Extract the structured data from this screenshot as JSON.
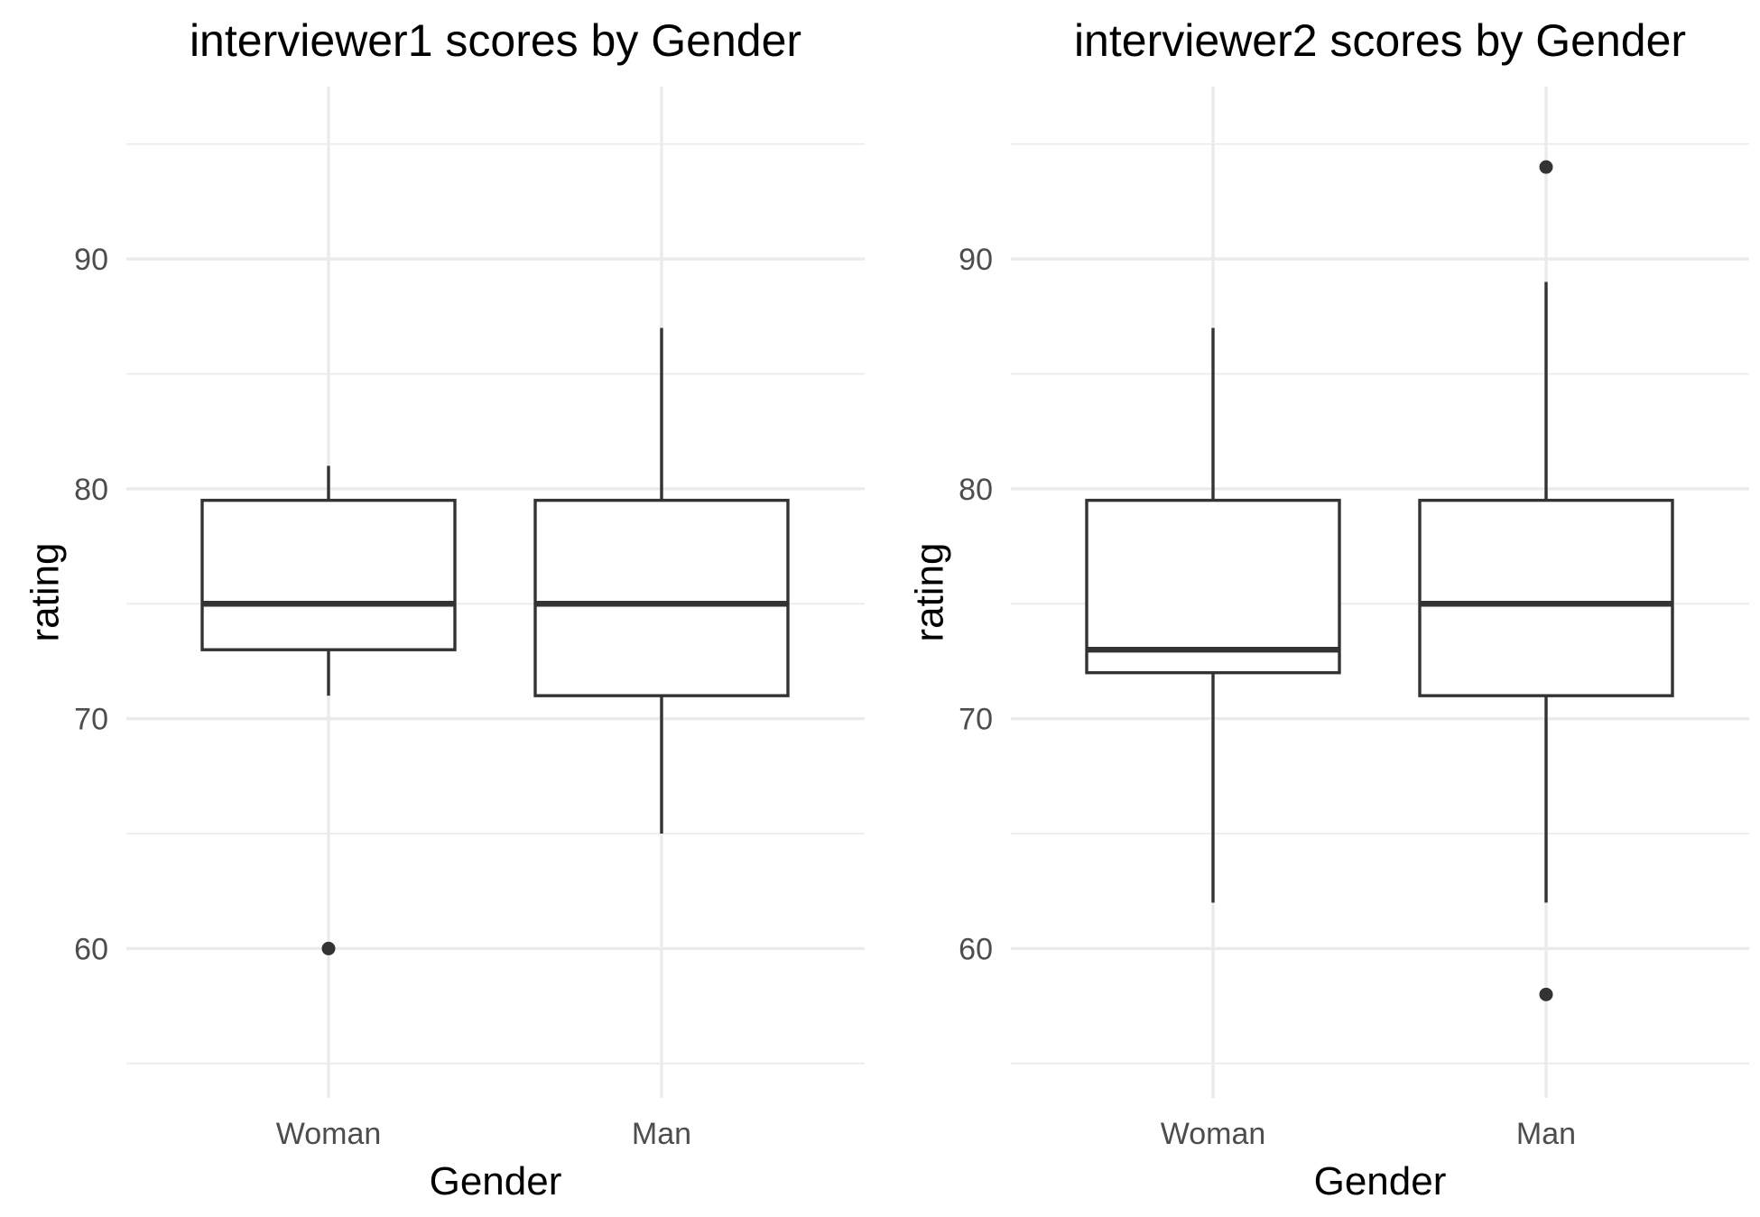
{
  "chart_data": [
    {
      "type": "boxplot",
      "title": "interviewer1 scores by Gender",
      "xlabel": "Gender",
      "ylabel": "rating",
      "categories": [
        "Woman",
        "Man"
      ],
      "ylim": [
        53.5,
        97.5
      ],
      "yticks": [
        60,
        70,
        80,
        90
      ],
      "y_minor_ticks": [
        55,
        65,
        75,
        85,
        95
      ],
      "grid": true,
      "boxes": [
        {
          "category": "Woman",
          "whisker_low": 71,
          "q1": 73,
          "median": 75,
          "q3": 79.5,
          "whisker_high": 81,
          "outliers": [
            60
          ]
        },
        {
          "category": "Man",
          "whisker_low": 65,
          "q1": 71,
          "median": 75,
          "q3": 79.5,
          "whisker_high": 87,
          "outliers": []
        }
      ]
    },
    {
      "type": "boxplot",
      "title": "interviewer2 scores by Gender",
      "xlabel": "Gender",
      "ylabel": "rating",
      "categories": [
        "Woman",
        "Man"
      ],
      "ylim": [
        53.5,
        97.5
      ],
      "yticks": [
        60,
        70,
        80,
        90
      ],
      "y_minor_ticks": [
        55,
        65,
        75,
        85,
        95
      ],
      "grid": true,
      "boxes": [
        {
          "category": "Woman",
          "whisker_low": 62,
          "q1": 72,
          "median": 73,
          "q3": 79.5,
          "whisker_high": 87,
          "outliers": []
        },
        {
          "category": "Man",
          "whisker_low": 62,
          "q1": 71,
          "median": 75,
          "q3": 79.5,
          "whisker_high": 89,
          "outliers": [
            94,
            58
          ]
        }
      ]
    }
  ]
}
